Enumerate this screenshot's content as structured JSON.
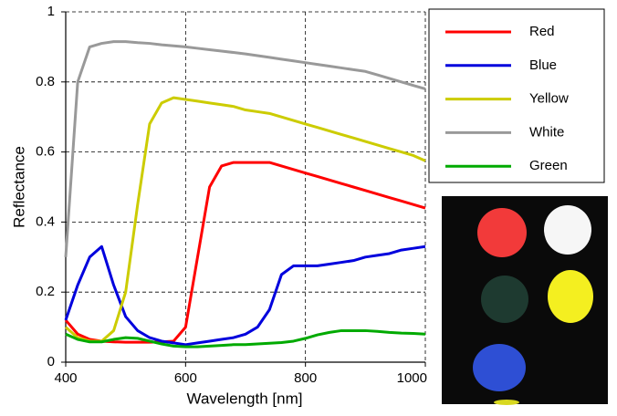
{
  "chart_data": {
    "type": "line",
    "title": null,
    "x_label": "Wavelength [nm]",
    "y_label": "Reflectance",
    "x": [
      400,
      420,
      440,
      460,
      480,
      500,
      520,
      540,
      560,
      580,
      600,
      620,
      640,
      660,
      680,
      700,
      720,
      740,
      760,
      780,
      800,
      820,
      840,
      860,
      880,
      900,
      920,
      940,
      960,
      980,
      1000
    ],
    "series": [
      {
        "name": "Red",
        "color": "#ff0000",
        "values": [
          0.12,
          0.08,
          0.065,
          0.06,
          0.058,
          0.057,
          0.057,
          0.057,
          0.058,
          0.06,
          0.1,
          0.3,
          0.5,
          0.56,
          0.57,
          0.57,
          0.57,
          0.57,
          0.56,
          0.55,
          0.54,
          0.53,
          0.52,
          0.51,
          0.5,
          0.49,
          0.48,
          0.47,
          0.46,
          0.45,
          0.44
        ]
      },
      {
        "name": "Blue",
        "color": "#0000dd",
        "values": [
          0.12,
          0.22,
          0.3,
          0.33,
          0.22,
          0.13,
          0.09,
          0.07,
          0.06,
          0.055,
          0.05,
          0.055,
          0.06,
          0.065,
          0.07,
          0.08,
          0.1,
          0.15,
          0.25,
          0.275,
          0.275,
          0.275,
          0.28,
          0.285,
          0.29,
          0.3,
          0.305,
          0.31,
          0.32,
          0.325,
          0.33
        ]
      },
      {
        "name": "Yellow",
        "color": "#cccc00",
        "values": [
          0.1,
          0.07,
          0.06,
          0.06,
          0.09,
          0.2,
          0.45,
          0.68,
          0.74,
          0.755,
          0.75,
          0.745,
          0.74,
          0.735,
          0.73,
          0.72,
          0.715,
          0.71,
          0.7,
          0.69,
          0.68,
          0.67,
          0.66,
          0.65,
          0.64,
          0.63,
          0.62,
          0.61,
          0.6,
          0.59,
          0.575
        ]
      },
      {
        "name": "White",
        "color": "#999999",
        "values": [
          0.3,
          0.8,
          0.9,
          0.91,
          0.915,
          0.915,
          0.912,
          0.91,
          0.906,
          0.903,
          0.9,
          0.896,
          0.892,
          0.888,
          0.884,
          0.88,
          0.875,
          0.87,
          0.865,
          0.86,
          0.855,
          0.85,
          0.845,
          0.84,
          0.835,
          0.83,
          0.82,
          0.81,
          0.8,
          0.79,
          0.78
        ]
      },
      {
        "name": "Green",
        "color": "#00aa00",
        "values": [
          0.08,
          0.065,
          0.058,
          0.058,
          0.065,
          0.07,
          0.068,
          0.06,
          0.052,
          0.046,
          0.044,
          0.044,
          0.046,
          0.048,
          0.05,
          0.05,
          0.052,
          0.054,
          0.056,
          0.06,
          0.068,
          0.078,
          0.085,
          0.09,
          0.09,
          0.09,
          0.088,
          0.085,
          0.083,
          0.082,
          0.08
        ]
      }
    ],
    "xlim": [
      400,
      1000
    ],
    "ylim": [
      0,
      1
    ],
    "xticks": [
      400,
      600,
      800,
      1000
    ],
    "yticks": [
      0,
      0.2,
      0.4,
      0.6,
      0.8,
      1
    ],
    "grid": true
  }
}
